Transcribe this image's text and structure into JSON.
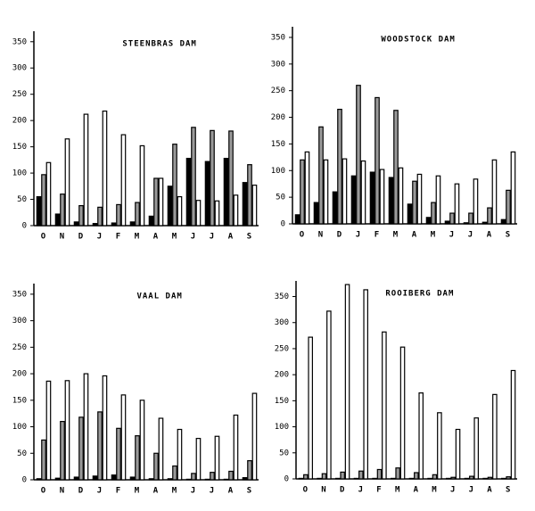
{
  "chart_data": [
    {
      "type": "bar",
      "title": "STEENBRAS DAM",
      "categories": [
        "O",
        "N",
        "D",
        "J",
        "F",
        "M",
        "A",
        "M",
        "J",
        "J",
        "A",
        "S"
      ],
      "series": [
        {
          "color": "#000000",
          "values": [
            55,
            22,
            7,
            4,
            5,
            7,
            18,
            75,
            128,
            122,
            128,
            82
          ]
        },
        {
          "color": "#9a9a9a",
          "values": [
            97,
            60,
            38,
            35,
            40,
            44,
            90,
            155,
            187,
            181,
            180,
            116
          ]
        },
        {
          "color": "#ffffff",
          "values": [
            120,
            165,
            212,
            218,
            173,
            152,
            90,
            55,
            48,
            47,
            58,
            77
          ]
        }
      ],
      "ylim": [
        0,
        370
      ],
      "yticks": [
        0,
        50,
        100,
        150,
        200,
        250,
        300,
        350
      ]
    },
    {
      "type": "bar",
      "title": "WOODSTOCK DAM",
      "categories": [
        "O",
        "N",
        "D",
        "J",
        "F",
        "M",
        "A",
        "M",
        "J",
        "J",
        "A",
        "S"
      ],
      "series": [
        {
          "color": "#000000",
          "values": [
            17,
            40,
            60,
            90,
            97,
            87,
            37,
            12,
            5,
            2,
            3,
            8
          ]
        },
        {
          "color": "#9a9a9a",
          "values": [
            120,
            182,
            215,
            260,
            237,
            213,
            80,
            40,
            20,
            20,
            30,
            63
          ]
        },
        {
          "color": "#ffffff",
          "values": [
            135,
            120,
            122,
            118,
            102,
            105,
            93,
            90,
            75,
            84,
            120,
            135
          ]
        }
      ],
      "ylim": [
        0,
        370
      ],
      "yticks": [
        0,
        50,
        100,
        150,
        200,
        250,
        300,
        350
      ]
    },
    {
      "type": "bar",
      "title": "VAAL DAM",
      "categories": [
        "O",
        "N",
        "D",
        "J",
        "F",
        "M",
        "A",
        "M",
        "J",
        "J",
        "A",
        "S"
      ],
      "series": [
        {
          "color": "#000000",
          "values": [
            2,
            3,
            5,
            7,
            9,
            5,
            2,
            2,
            1,
            1,
            1,
            4
          ]
        },
        {
          "color": "#9a9a9a",
          "values": [
            75,
            110,
            118,
            128,
            97,
            83,
            50,
            26,
            12,
            14,
            16,
            36
          ]
        },
        {
          "color": "#ffffff",
          "values": [
            186,
            187,
            200,
            196,
            160,
            150,
            116,
            95,
            78,
            82,
            122,
            163
          ]
        }
      ],
      "ylim": [
        0,
        370
      ],
      "yticks": [
        0,
        50,
        100,
        150,
        200,
        250,
        300,
        350
      ]
    },
    {
      "type": "bar",
      "title": "ROOIBERG DAM",
      "categories": [
        "O",
        "N",
        "D",
        "J",
        "F",
        "M",
        "A",
        "M",
        "J",
        "J",
        "A",
        "S"
      ],
      "series": [
        {
          "color": "#000000",
          "values": [
            1,
            1,
            1,
            1,
            1,
            1,
            1,
            1,
            1,
            1,
            1,
            1
          ]
        },
        {
          "color": "#9a9a9a",
          "values": [
            8,
            10,
            13,
            15,
            18,
            21,
            12,
            8,
            3,
            5,
            3,
            4
          ]
        },
        {
          "color": "#ffffff",
          "values": [
            272,
            322,
            373,
            363,
            282,
            253,
            165,
            127,
            95,
            117,
            162,
            208
          ]
        }
      ],
      "ylim": [
        0,
        380
      ],
      "yticks": [
        0,
        50,
        100,
        150,
        200,
        250,
        300,
        350
      ]
    }
  ]
}
